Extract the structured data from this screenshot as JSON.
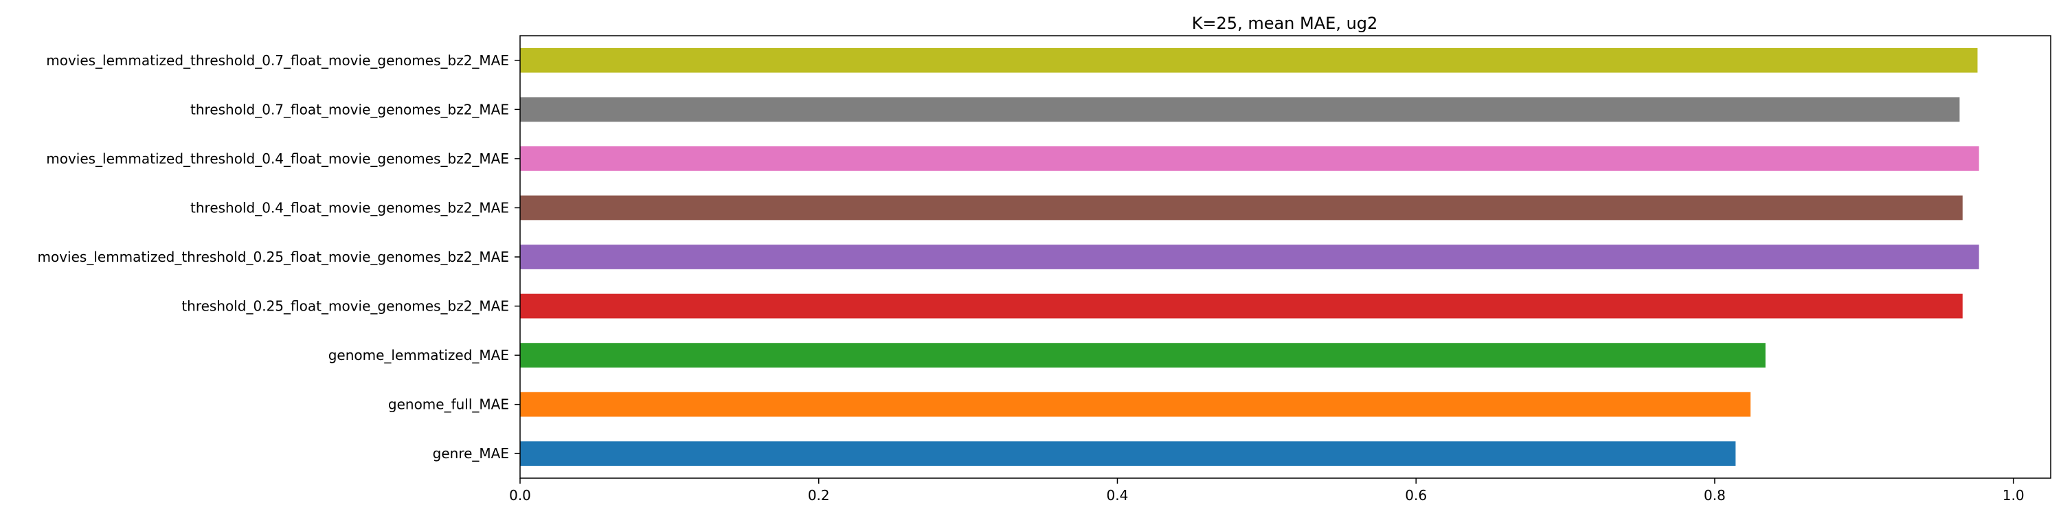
{
  "chart_data": {
    "type": "bar",
    "orientation": "horizontal",
    "title": "K=25, mean MAE, ug2",
    "xlabel": "",
    "ylabel": "",
    "xlim": [
      0.0,
      1.025
    ],
    "xticks": [
      0.0,
      0.2,
      0.4,
      0.6,
      0.8,
      1.0
    ],
    "xtick_labels": [
      "0.0",
      "0.2",
      "0.4",
      "0.6",
      "0.8",
      "1.0"
    ],
    "grid": false,
    "legend": "none",
    "categories": [
      "genre_MAE",
      "genome_full_MAE",
      "genome_lemmatized_MAE",
      "threshold_0.25_float_movie_genomes_bz2_MAE",
      "movies_lemmatized_threshold_0.25_float_movie_genomes_bz2_MAE",
      "threshold_0.4_float_movie_genomes_bz2_MAE",
      "movies_lemmatized_threshold_0.4_float_movie_genomes_bz2_MAE",
      "threshold_0.7_float_movie_genomes_bz2_MAE",
      "movies_lemmatized_threshold_0.7_float_movie_genomes_bz2_MAE"
    ],
    "values": [
      0.814,
      0.824,
      0.834,
      0.966,
      0.977,
      0.966,
      0.977,
      0.964,
      0.976
    ],
    "colors": [
      "#1f77b4",
      "#ff7f0e",
      "#2ca02c",
      "#d62728",
      "#9467bd",
      "#8c564b",
      "#e377c2",
      "#7f7f7f",
      "#bcbd22"
    ]
  }
}
